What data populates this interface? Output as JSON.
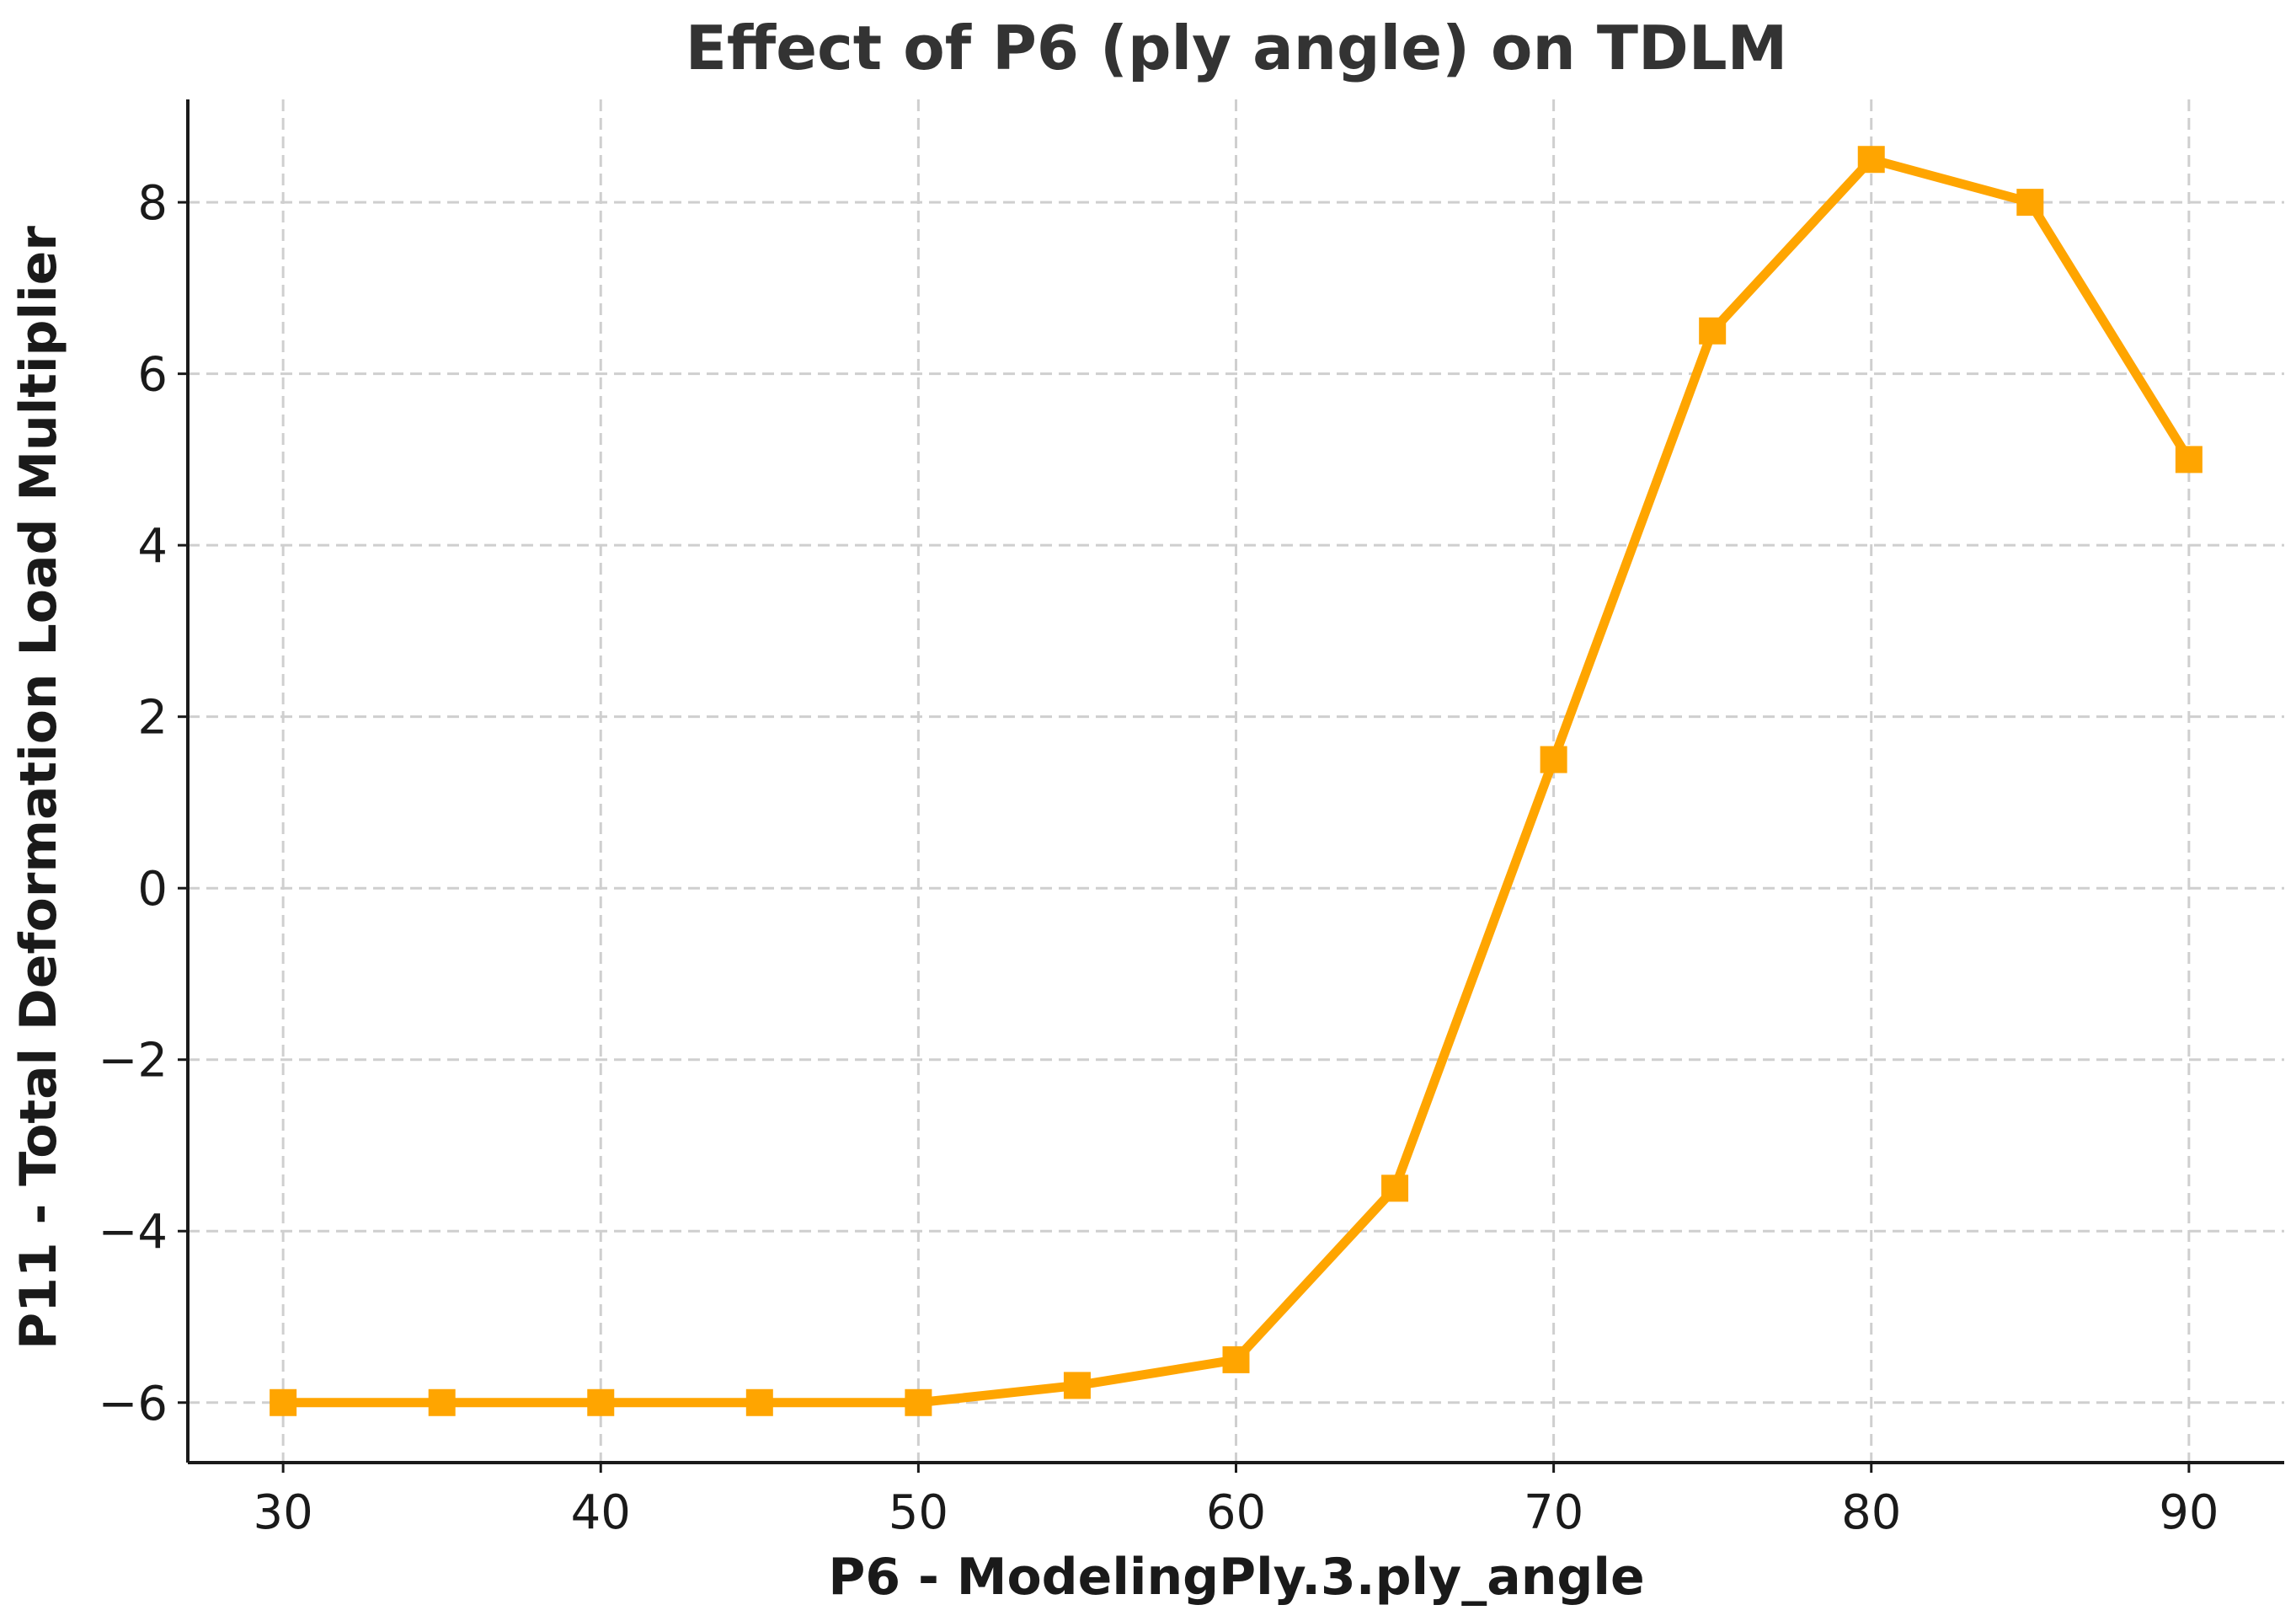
{
  "chart_data": {
    "type": "line",
    "title": "Effect of P6 (ply angle) on TDLM",
    "xlabel": "P6 - ModelingPly.3.ply_angle",
    "ylabel": "P11 - Total Deformation Load Multiplier",
    "xlim": [
      27,
      93
    ],
    "ylim": [
      -6.7,
      9.2
    ],
    "xticks": [
      30,
      40,
      50,
      60,
      70,
      80,
      90
    ],
    "yticks": [
      -6,
      -4,
      -2,
      0,
      2,
      4,
      6,
      8
    ],
    "xtick_labels": [
      "30",
      "40",
      "50",
      "60",
      "70",
      "80",
      "90"
    ],
    "ytick_labels": [
      "−6",
      "−4",
      "−2",
      "0",
      "2",
      "4",
      "6",
      "8"
    ],
    "grid": true,
    "series": [
      {
        "name": "TDLM",
        "color": "#FFA500",
        "marker": "square",
        "x": [
          30,
          35,
          40,
          45,
          50,
          55,
          60,
          65,
          70,
          75,
          80,
          85,
          90
        ],
        "y": [
          -6,
          -6,
          -6,
          -6,
          -6,
          -5.8,
          -5.5,
          -3.5,
          1.5,
          6.5,
          8.5,
          8,
          5
        ]
      }
    ]
  }
}
